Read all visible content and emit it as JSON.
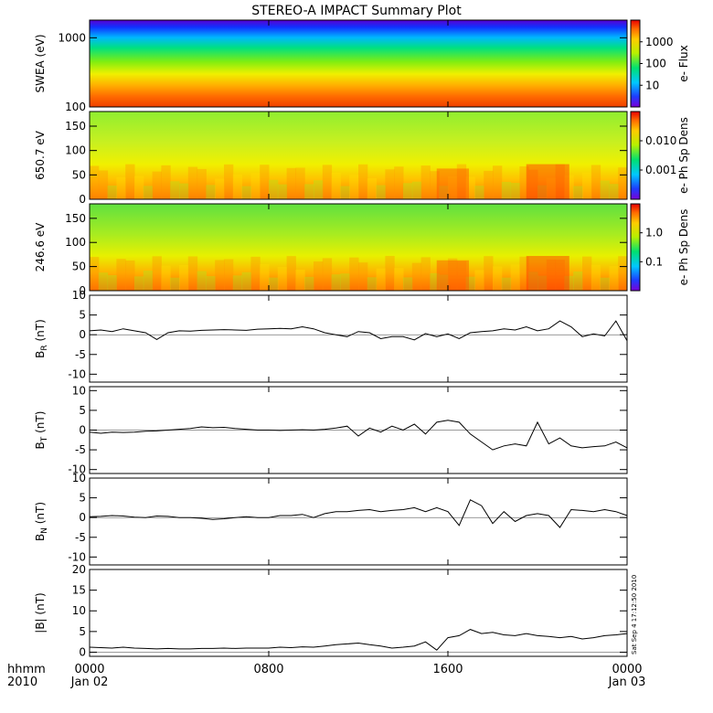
{
  "title": "STEREO-A IMPACT Summary Plot",
  "footer": {
    "time_format_label": "hhmm",
    "year_label": "2010",
    "x_ticks": [
      {
        "hours": 0,
        "label": "0000",
        "sublabel": "Jan 02"
      },
      {
        "hours": 8,
        "label": "0800",
        "sublabel": ""
      },
      {
        "hours": 16,
        "label": "1600",
        "sublabel": ""
      },
      {
        "hours": 24,
        "label": "0000",
        "sublabel": "Jan 03"
      }
    ]
  },
  "timestamp": "Sat Sep  4 17:12:50 2010",
  "colorbars": [
    {
      "label": "e- Flux",
      "ticks": [
        "10",
        "100",
        "1000"
      ]
    },
    {
      "label": "e- Ph Sp Dens",
      "ticks": [
        "0.001",
        "0.010"
      ]
    },
    {
      "label": "e- Ph Sp Dens",
      "ticks": [
        "0.1",
        "1.0"
      ]
    }
  ],
  "chart_data": [
    {
      "type": "heatmap",
      "ylabel": "SWEA (eV)",
      "yscale": "log",
      "ylim": [
        100,
        1800
      ],
      "yticks": [
        "100",
        "1000"
      ],
      "xlim_hours": [
        0,
        24
      ]
    },
    {
      "type": "heatmap",
      "ylabel": "650.7 eV",
      "ylim": [
        0,
        180
      ],
      "yticks": [
        "0",
        "50",
        "100",
        "150"
      ],
      "xlim_hours": [
        0,
        24
      ]
    },
    {
      "type": "heatmap",
      "ylabel": "246.6 eV",
      "ylim": [
        0,
        180
      ],
      "yticks": [
        "0",
        "50",
        "100",
        "150"
      ],
      "xlim_hours": [
        0,
        24
      ]
    },
    {
      "type": "line",
      "ylabel": "B",
      "ylabel_sub": "R",
      "ylabel_unit": " (nT)",
      "ylim": [
        -12,
        10
      ],
      "yticks": [
        "-10",
        "-5",
        "0",
        "5",
        "10"
      ],
      "x": [
        0,
        0.5,
        1,
        1.5,
        2,
        2.5,
        3,
        3.5,
        4,
        4.5,
        5,
        5.5,
        6,
        6.5,
        7,
        7.5,
        8,
        8.5,
        9,
        9.5,
        10,
        10.5,
        11,
        11.5,
        12,
        12.5,
        13,
        13.5,
        14,
        14.5,
        15,
        15.5,
        16,
        16.5,
        17,
        17.5,
        18,
        18.5,
        19,
        19.5,
        20,
        20.5,
        21,
        21.5,
        22,
        22.5,
        23,
        23.5,
        24
      ],
      "y": [
        1.0,
        1.2,
        0.8,
        1.5,
        1.0,
        0.5,
        -1.2,
        0.5,
        1.0,
        0.9,
        1.1,
        1.2,
        1.3,
        1.2,
        1.1,
        1.4,
        1.5,
        1.6,
        1.5,
        2.0,
        1.5,
        0.5,
        0,
        -0.5,
        0.8,
        0.5,
        -1.0,
        -0.5,
        -0.5,
        -1.3,
        0.3,
        -0.5,
        0.2,
        -1.0,
        0.5,
        0.8,
        1.0,
        1.5,
        1.2,
        2.0,
        1.0,
        1.5,
        3.5,
        2.0,
        -0.5,
        0.2,
        -0.3,
        3.5,
        -1.5
      ]
    },
    {
      "type": "line",
      "ylabel": "B",
      "ylabel_sub": "T",
      "ylabel_unit": " (nT)",
      "ylim": [
        -11,
        11
      ],
      "yticks": [
        "-10",
        "-5",
        "0",
        "5",
        "10"
      ],
      "x": [
        0,
        0.5,
        1,
        1.5,
        2,
        2.5,
        3,
        3.5,
        4,
        4.5,
        5,
        5.5,
        6,
        6.5,
        7,
        7.5,
        8,
        8.5,
        9,
        9.5,
        10,
        10.5,
        11,
        11.5,
        12,
        12.5,
        13,
        13.5,
        14,
        14.5,
        15,
        15.5,
        16,
        16.5,
        17,
        17.5,
        18,
        18.5,
        19,
        19.5,
        20,
        20.5,
        21,
        21.5,
        22,
        22.5,
        23,
        23.5,
        24
      ],
      "y": [
        -0.5,
        -0.8,
        -0.5,
        -0.6,
        -0.5,
        -0.3,
        -0.2,
        0,
        0.2,
        0.4,
        0.8,
        0.6,
        0.7,
        0.4,
        0.2,
        0,
        0,
        -0.1,
        0,
        0.1,
        0,
        0.2,
        0.5,
        1.0,
        -1.5,
        0.5,
        -0.5,
        1.0,
        0,
        1.5,
        -1.0,
        2.0,
        2.5,
        2.0,
        -1.0,
        -3.0,
        -5.0,
        -4.0,
        -3.5,
        -4.0,
        2.0,
        -3.5,
        -2.0,
        -4.0,
        -4.5,
        -4.2,
        -4.0,
        -3.0,
        -4.5
      ]
    },
    {
      "type": "line",
      "ylabel": "B",
      "ylabel_sub": "N",
      "ylabel_unit": " (nT)",
      "ylim": [
        -12,
        10
      ],
      "yticks": [
        "-10",
        "-5",
        "0",
        "5",
        "10"
      ],
      "x": [
        0,
        0.5,
        1,
        1.5,
        2,
        2.5,
        3,
        3.5,
        4,
        4.5,
        5,
        5.5,
        6,
        6.5,
        7,
        7.5,
        8,
        8.5,
        9,
        9.5,
        10,
        10.5,
        11,
        11.5,
        12,
        12.5,
        13,
        13.5,
        14,
        14.5,
        15,
        15.5,
        16,
        16.5,
        17,
        17.5,
        18,
        18.5,
        19,
        19.5,
        20,
        20.5,
        21,
        21.5,
        22,
        22.5,
        23,
        23.5,
        24
      ],
      "y": [
        0.2,
        0.3,
        0.5,
        0.4,
        0.1,
        0,
        0.4,
        0.3,
        0,
        0,
        -0.2,
        -0.5,
        -0.3,
        0,
        0.2,
        0,
        0,
        0.5,
        0.5,
        0.8,
        0,
        1.0,
        1.5,
        1.5,
        1.8,
        2.0,
        1.5,
        1.8,
        2.0,
        2.5,
        1.5,
        2.5,
        1.5,
        -2.0,
        4.5,
        3.0,
        -1.5,
        1.5,
        -1.0,
        0.5,
        1.0,
        0.5,
        -2.5,
        2.0,
        1.8,
        1.5,
        2.0,
        1.5,
        0.5
      ]
    },
    {
      "type": "line",
      "ylabel": "|B| (nT)",
      "ylim": [
        -1,
        20
      ],
      "yticks": [
        "0",
        "5",
        "10",
        "15",
        "20"
      ],
      "x": [
        0,
        0.5,
        1,
        1.5,
        2,
        2.5,
        3,
        3.5,
        4,
        4.5,
        5,
        5.5,
        6,
        6.5,
        7,
        7.5,
        8,
        8.5,
        9,
        9.5,
        10,
        10.5,
        11,
        11.5,
        12,
        12.5,
        13,
        13.5,
        14,
        14.5,
        15,
        15.5,
        16,
        16.5,
        17,
        17.5,
        18,
        18.5,
        19,
        19.5,
        20,
        20.5,
        21,
        21.5,
        22,
        22.5,
        23,
        23.5,
        24
      ],
      "y": [
        1.2,
        1.1,
        1.0,
        1.2,
        1.0,
        0.9,
        0.8,
        0.9,
        0.8,
        0.8,
        0.9,
        0.9,
        1.0,
        0.9,
        1.0,
        1.0,
        1.0,
        1.2,
        1.1,
        1.3,
        1.2,
        1.5,
        1.8,
        2.0,
        2.2,
        1.8,
        1.5,
        1.0,
        1.2,
        1.5,
        2.5,
        0.5,
        3.5,
        4.0,
        5.5,
        4.5,
        4.8,
        4.2,
        4.0,
        4.5,
        4.0,
        3.8,
        3.5,
        3.8,
        3.2,
        3.5,
        4.0,
        4.2,
        4.5
      ]
    }
  ]
}
